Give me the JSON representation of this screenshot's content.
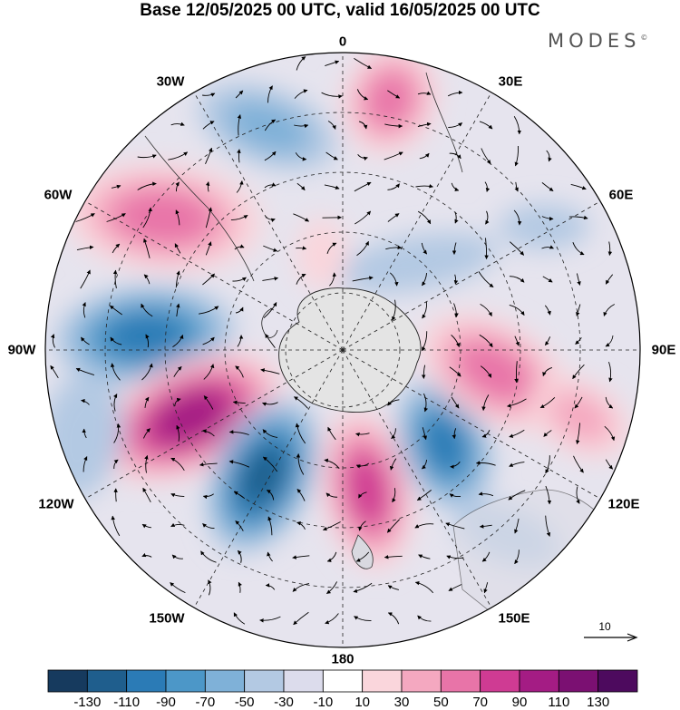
{
  "title": "Base 12/05/2025 00 UTC, valid 16/05/2025 00 UTC",
  "brand": "MODES",
  "brand_mark": "©",
  "longitude_labels": {
    "lon_0": "0",
    "lon_30e": "30E",
    "lon_60e": "60E",
    "lon_90e": "90E",
    "lon_120e": "120E",
    "lon_150e": "150E",
    "lon_180": "180",
    "lon_150w": "150W",
    "lon_120w": "120W",
    "lon_90w": "90W",
    "lon_60w": "60W",
    "lon_30w": "30W"
  },
  "vector_scale": {
    "label": "10",
    "value": 10
  },
  "colorbar": {
    "tick_labels": [
      "-130",
      "-110",
      "-90",
      "-70",
      "-50",
      "-30",
      "-10",
      "10",
      "30",
      "50",
      "70",
      "90",
      "110",
      "130"
    ],
    "colors": [
      "#163a5e",
      "#1f5e8d",
      "#2b7bb6",
      "#4c97c8",
      "#7fb1d8",
      "#b3c9e3",
      "#dcdcec",
      "#ffffff",
      "#fad6dc",
      "#f4a8c0",
      "#e874a8",
      "#cf3b93",
      "#a41c84",
      "#7b1072",
      "#4d0a5e"
    ]
  },
  "map": {
    "projection": "south polar stereographic",
    "graticule": "dashed",
    "anomaly_centers": [
      {
        "sector": "0-30E",
        "sign": "positive",
        "strength": 70
      },
      {
        "sector": "30W-0",
        "sign": "negative",
        "strength": -50
      },
      {
        "sector": "60W",
        "sign": "positive",
        "strength": 70
      },
      {
        "sector": "90W",
        "sign": "negative",
        "strength": -90
      },
      {
        "sector": "110W",
        "sign": "positive",
        "strength": 110
      },
      {
        "sector": "150W",
        "sign": "negative",
        "strength": -110
      },
      {
        "sector": "170E",
        "sign": "positive",
        "strength": 90
      },
      {
        "sector": "130E",
        "sign": "negative",
        "strength": -90
      },
      {
        "sector": "90E",
        "sign": "positive",
        "strength": 70
      }
    ]
  }
}
